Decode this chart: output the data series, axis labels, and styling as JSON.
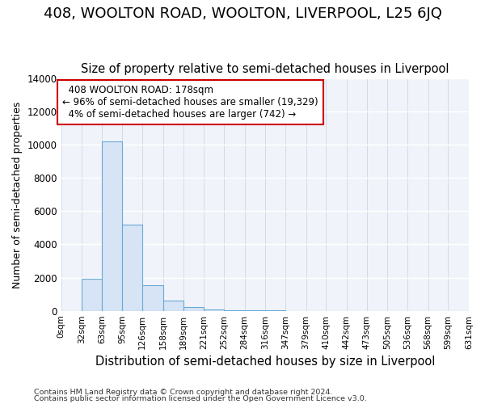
{
  "title": "408, WOOLTON ROAD, WOOLTON, LIVERPOOL, L25 6JQ",
  "subtitle": "Size of property relative to semi-detached houses in Liverpool",
  "xlabel": "Distribution of semi-detached houses by size in Liverpool",
  "ylabel": "Number of semi-detached properties",
  "footnote1": "Contains HM Land Registry data © Crown copyright and database right 2024.",
  "footnote2": "Contains public sector information licensed under the Open Government Licence v3.0.",
  "annotation_line1": "408 WOOLTON ROAD: 178sqm",
  "annotation_line2": "← 96% of semi-detached houses are smaller (19,329)",
  "annotation_line3": "4% of semi-detached houses are larger (742) →",
  "bin_edges": [
    0,
    32,
    63,
    95,
    126,
    158,
    189,
    221,
    252,
    284,
    316,
    347,
    379,
    410,
    442,
    473,
    505,
    536,
    568,
    599,
    631
  ],
  "bar_heights": [
    0,
    1950,
    10200,
    5200,
    1550,
    620,
    220,
    100,
    50,
    20,
    10,
    5,
    0,
    0,
    0,
    0,
    0,
    0,
    0,
    0
  ],
  "bar_color": "#d6e4f5",
  "bar_edge_color": "#6aaad4",
  "annotation_box_edge_color": "#cc0000",
  "background_color": "#ffffff",
  "plot_bg_color": "#f0f4fa",
  "ylim": [
    0,
    14000
  ],
  "yticks": [
    0,
    2000,
    4000,
    6000,
    8000,
    10000,
    12000,
    14000
  ],
  "title_fontsize": 13,
  "subtitle_fontsize": 10.5,
  "ylabel_fontsize": 9,
  "xlabel_fontsize": 10.5
}
